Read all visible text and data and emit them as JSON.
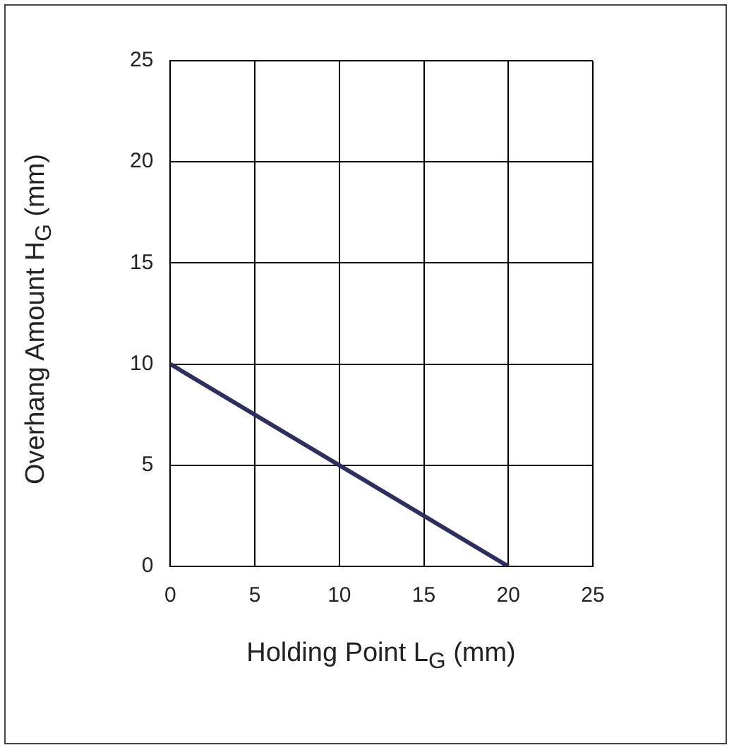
{
  "chart_data": {
    "type": "line",
    "xlabel": "Holding Point L$_{G}$ (mm)",
    "ylabel": "Overhang Amount H$_{G}$ (mm)",
    "x": [
      0,
      20
    ],
    "series": [
      {
        "color": "#2e2f5e",
        "values": [
          10,
          0
        ]
      }
    ],
    "xlim": [
      0,
      25
    ],
    "xticks": [
      0,
      5,
      10,
      15,
      20,
      25
    ],
    "ylim": [
      0,
      25
    ],
    "yticks": [
      0,
      5,
      10,
      15,
      20,
      25
    ],
    "grid": true,
    "legend": false,
    "marker": "none",
    "line_style": "solid"
  }
}
